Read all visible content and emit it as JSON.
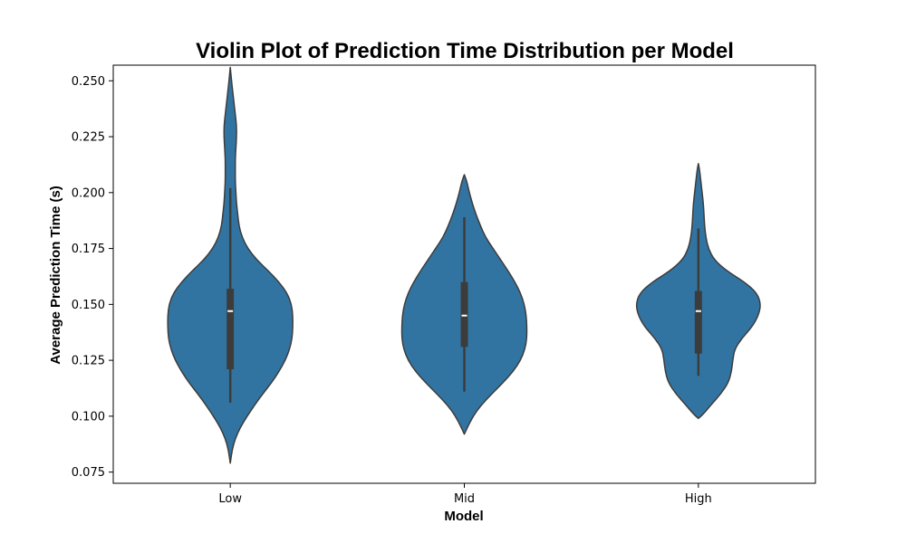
{
  "chart_data": {
    "type": "violin",
    "title": "Violin Plot of Prediction Time Distribution per Model",
    "xlabel": "Model",
    "ylabel": "Average Prediction Time (s)",
    "categories": [
      "Low",
      "Mid",
      "High"
    ],
    "ylim": [
      0.07,
      0.257
    ],
    "yticks": [
      "0.075",
      "0.100",
      "0.125",
      "0.150",
      "0.175",
      "0.200",
      "0.225",
      "0.250"
    ],
    "ytick_values": [
      0.075,
      0.1,
      0.125,
      0.15,
      0.175,
      0.2,
      0.225,
      0.25
    ],
    "grid": false,
    "fill_color": "#3274a1",
    "edge_color": "#3c3c3c",
    "violins": [
      {
        "category": "Low",
        "min": 0.079,
        "max": 0.256,
        "whisker_low": 0.106,
        "q1": 0.121,
        "median": 0.147,
        "q3": 0.157,
        "whisker_high": 0.202,
        "profile": [
          [
            0.079,
            0.0
          ],
          [
            0.085,
            0.03
          ],
          [
            0.09,
            0.08
          ],
          [
            0.095,
            0.16
          ],
          [
            0.1,
            0.27
          ],
          [
            0.105,
            0.39
          ],
          [
            0.11,
            0.52
          ],
          [
            0.115,
            0.66
          ],
          [
            0.12,
            0.78
          ],
          [
            0.125,
            0.88
          ],
          [
            0.13,
            0.95
          ],
          [
            0.135,
            0.99
          ],
          [
            0.14,
            1.0
          ],
          [
            0.145,
            1.0
          ],
          [
            0.15,
            0.98
          ],
          [
            0.155,
            0.91
          ],
          [
            0.16,
            0.78
          ],
          [
            0.165,
            0.61
          ],
          [
            0.17,
            0.42
          ],
          [
            0.175,
            0.28
          ],
          [
            0.18,
            0.19
          ],
          [
            0.185,
            0.14
          ],
          [
            0.19,
            0.12
          ],
          [
            0.195,
            0.1
          ],
          [
            0.2,
            0.09
          ],
          [
            0.205,
            0.08
          ],
          [
            0.21,
            0.08
          ],
          [
            0.215,
            0.08
          ],
          [
            0.22,
            0.09
          ],
          [
            0.225,
            0.1
          ],
          [
            0.23,
            0.1
          ],
          [
            0.235,
            0.08
          ],
          [
            0.24,
            0.06
          ],
          [
            0.245,
            0.04
          ],
          [
            0.25,
            0.02
          ],
          [
            0.256,
            0.0
          ]
        ]
      },
      {
        "category": "Mid",
        "min": 0.092,
        "max": 0.208,
        "whisker_low": 0.111,
        "q1": 0.131,
        "median": 0.145,
        "q3": 0.16,
        "whisker_high": 0.189,
        "profile": [
          [
            0.092,
            0.0
          ],
          [
            0.095,
            0.05
          ],
          [
            0.1,
            0.14
          ],
          [
            0.105,
            0.27
          ],
          [
            0.11,
            0.44
          ],
          [
            0.115,
            0.62
          ],
          [
            0.12,
            0.78
          ],
          [
            0.125,
            0.9
          ],
          [
            0.13,
            0.97
          ],
          [
            0.135,
            1.0
          ],
          [
            0.14,
            1.0
          ],
          [
            0.145,
            0.99
          ],
          [
            0.15,
            0.96
          ],
          [
            0.155,
            0.9
          ],
          [
            0.16,
            0.81
          ],
          [
            0.165,
            0.7
          ],
          [
            0.17,
            0.58
          ],
          [
            0.175,
            0.46
          ],
          [
            0.18,
            0.34
          ],
          [
            0.185,
            0.26
          ],
          [
            0.19,
            0.19
          ],
          [
            0.195,
            0.13
          ],
          [
            0.2,
            0.08
          ],
          [
            0.205,
            0.04
          ],
          [
            0.208,
            0.0
          ]
        ]
      },
      {
        "category": "High",
        "min": 0.099,
        "max": 0.213,
        "whisker_low": 0.118,
        "q1": 0.128,
        "median": 0.147,
        "q3": 0.156,
        "whisker_high": 0.184,
        "profile": [
          [
            0.099,
            0.0
          ],
          [
            0.101,
            0.08
          ],
          [
            0.105,
            0.2
          ],
          [
            0.11,
            0.36
          ],
          [
            0.115,
            0.48
          ],
          [
            0.12,
            0.53
          ],
          [
            0.125,
            0.55
          ],
          [
            0.13,
            0.58
          ],
          [
            0.135,
            0.7
          ],
          [
            0.14,
            0.86
          ],
          [
            0.145,
            0.96
          ],
          [
            0.15,
            1.0
          ],
          [
            0.155,
            0.94
          ],
          [
            0.16,
            0.74
          ],
          [
            0.165,
            0.45
          ],
          [
            0.17,
            0.25
          ],
          [
            0.175,
            0.16
          ],
          [
            0.18,
            0.12
          ],
          [
            0.185,
            0.1
          ],
          [
            0.19,
            0.09
          ],
          [
            0.195,
            0.08
          ],
          [
            0.2,
            0.06
          ],
          [
            0.205,
            0.04
          ],
          [
            0.21,
            0.02
          ],
          [
            0.213,
            0.0
          ]
        ]
      }
    ]
  }
}
